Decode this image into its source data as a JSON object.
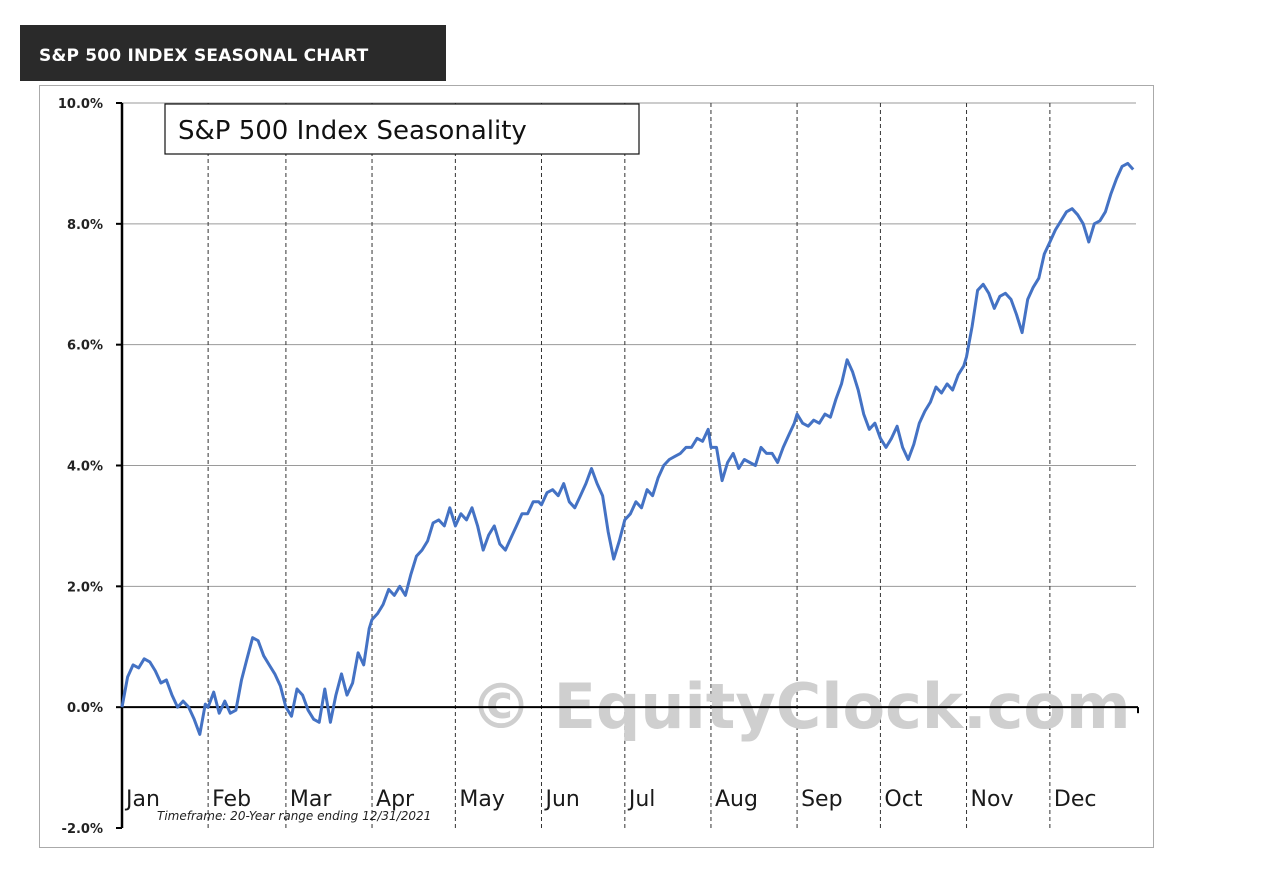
{
  "header": {
    "title": "S&P 500 INDEX SEASONAL CHART"
  },
  "chart_data": {
    "type": "line",
    "title": "S&P 500 Index Seasonality",
    "footnote": "Timeframe: 20-Year range ending 12/31/2021",
    "watermark": "© EquityClock.com",
    "xlabel": "",
    "ylabel": "",
    "ylim": [
      -2.0,
      10.0
    ],
    "y_ticks": [
      -2.0,
      0.0,
      2.0,
      4.0,
      6.0,
      8.0,
      10.0
    ],
    "y_tick_labels": [
      "-2.0%",
      "0.0%",
      "2.0%",
      "4.0%",
      "6.0%",
      "8.0%",
      "10.0%"
    ],
    "x_range_days": [
      0,
      365
    ],
    "months": [
      "Jan",
      "Feb",
      "Mar",
      "Apr",
      "May",
      "Jun",
      "Jul",
      "Aug",
      "Sep",
      "Oct",
      "Nov",
      "Dec"
    ],
    "month_starts_day": [
      0,
      31,
      59,
      90,
      120,
      151,
      181,
      212,
      243,
      273,
      304,
      334
    ],
    "grid": true,
    "line_color": "#4472c4",
    "series": [
      {
        "name": "",
        "x": [
          0,
          2,
          4,
          6,
          8,
          10,
          12,
          14,
          16,
          18,
          20,
          22,
          24,
          26,
          28,
          30,
          31,
          33,
          35,
          37,
          39,
          41,
          43,
          45,
          47,
          49,
          51,
          53,
          55,
          57,
          59,
          61,
          63,
          65,
          67,
          69,
          71,
          73,
          75,
          77,
          79,
          81,
          83,
          85,
          87,
          89,
          90,
          92,
          94,
          96,
          98,
          100,
          102,
          104,
          106,
          108,
          110,
          112,
          114,
          116,
          118,
          120,
          122,
          124,
          126,
          128,
          130,
          132,
          134,
          136,
          138,
          140,
          142,
          144,
          146,
          148,
          150,
          151,
          153,
          155,
          157,
          159,
          161,
          163,
          165,
          167,
          169,
          171,
          173,
          175,
          177,
          179,
          181,
          183,
          185,
          187,
          189,
          191,
          193,
          195,
          197,
          199,
          201,
          203,
          205,
          207,
          209,
          211,
          212,
          214,
          216,
          218,
          220,
          222,
          224,
          226,
          228,
          230,
          232,
          234,
          236,
          238,
          240,
          242,
          243,
          245,
          247,
          249,
          251,
          253,
          255,
          257,
          259,
          261,
          263,
          265,
          267,
          269,
          271,
          273,
          275,
          277,
          279,
          281,
          283,
          285,
          287,
          289,
          291,
          293,
          295,
          297,
          299,
          301,
          303,
          304,
          306,
          308,
          310,
          312,
          314,
          316,
          318,
          320,
          322,
          324,
          326,
          328,
          330,
          332,
          334,
          336,
          338,
          340,
          342,
          344,
          346,
          348,
          350,
          352,
          354,
          356,
          358,
          360,
          362,
          364
        ],
        "y": [
          0.0,
          0.5,
          0.7,
          0.65,
          0.8,
          0.75,
          0.6,
          0.4,
          0.45,
          0.2,
          0.0,
          0.1,
          0.0,
          -0.2,
          -0.45,
          0.05,
          0.0,
          0.25,
          -0.1,
          0.1,
          -0.1,
          -0.05,
          0.45,
          0.8,
          1.15,
          1.1,
          0.85,
          0.7,
          0.55,
          0.35,
          0.0,
          -0.15,
          0.3,
          0.2,
          -0.05,
          -0.2,
          -0.25,
          0.3,
          -0.25,
          0.2,
          0.55,
          0.2,
          0.4,
          0.9,
          0.7,
          1.3,
          1.45,
          1.55,
          1.7,
          1.95,
          1.85,
          2.0,
          1.85,
          2.2,
          2.5,
          2.6,
          2.75,
          3.05,
          3.1,
          3.0,
          3.3,
          3.0,
          3.2,
          3.1,
          3.3,
          3.0,
          2.6,
          2.85,
          3.0,
          2.7,
          2.6,
          2.8,
          3.0,
          3.2,
          3.2,
          3.4,
          3.4,
          3.35,
          3.55,
          3.6,
          3.5,
          3.7,
          3.4,
          3.3,
          3.5,
          3.7,
          3.95,
          3.7,
          3.5,
          2.9,
          2.45,
          2.75,
          3.1,
          3.2,
          3.4,
          3.3,
          3.6,
          3.5,
          3.8,
          4.0,
          4.1,
          4.15,
          4.2,
          4.3,
          4.3,
          4.45,
          4.4,
          4.6,
          4.3,
          4.3,
          3.75,
          4.05,
          4.2,
          3.95,
          4.1,
          4.05,
          4.0,
          4.3,
          4.2,
          4.2,
          4.05,
          4.3,
          4.5,
          4.7,
          4.85,
          4.7,
          4.65,
          4.75,
          4.7,
          4.85,
          4.8,
          5.1,
          5.35,
          5.75,
          5.55,
          5.25,
          4.85,
          4.6,
          4.7,
          4.45,
          4.3,
          4.45,
          4.65,
          4.3,
          4.1,
          4.35,
          4.7,
          4.9,
          5.05,
          5.3,
          5.2,
          5.35,
          5.25,
          5.5,
          5.65,
          5.8,
          6.3,
          6.9,
          7.0,
          6.85,
          6.6,
          6.8,
          6.85,
          6.75,
          6.5,
          6.2,
          6.75,
          6.95,
          7.1,
          7.5,
          7.7,
          7.9,
          8.05,
          8.2,
          8.25,
          8.15,
          8.0,
          7.7,
          8.0,
          8.05,
          8.2,
          8.5,
          8.75,
          8.95,
          9.0,
          8.9
        ]
      }
    ]
  }
}
